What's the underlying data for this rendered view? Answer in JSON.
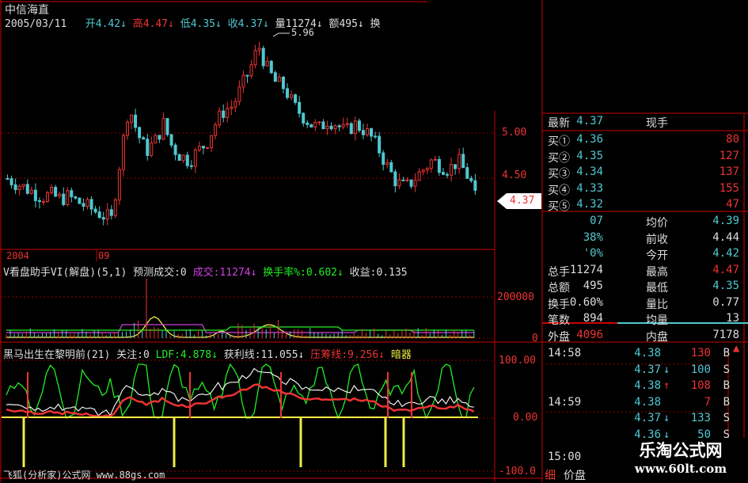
{
  "header": {
    "stock_name": "中信海直",
    "date": "2005/03/11",
    "open": "开4.42",
    "high": "高4.47",
    "low": "低4.35",
    "close": "收4.37",
    "volume": "量11274",
    "amount": "额495",
    "turnover": "换",
    "arrow": "↓"
  },
  "price_chart": {
    "peak_label": "5.96",
    "axis": [
      "5.00",
      "4.50"
    ],
    "current_price": "4.37",
    "years": [
      "2004",
      "09"
    ],
    "approx_closes": [
      4.5,
      4.45,
      4.4,
      4.35,
      4.3,
      4.32,
      4.28,
      4.3,
      4.25,
      4.2,
      4.15,
      4.1,
      4.05,
      4.7,
      5.3,
      5.0,
      4.8,
      4.9,
      5.1,
      4.85,
      4.75,
      4.7,
      4.8,
      4.9,
      5.1,
      5.25,
      5.3,
      5.5,
      5.7,
      5.96,
      5.7,
      5.55,
      5.5,
      5.3,
      5.2,
      5.1,
      5.05,
      5.15,
      5.1,
      5.0,
      5.1,
      5.05,
      4.95,
      4.8,
      4.6,
      4.45,
      4.4,
      4.5,
      4.6,
      4.7,
      4.65,
      4.6,
      4.7,
      4.55,
      4.37
    ]
  },
  "indicator1": {
    "title": "V看盘助手VI(解盘)(5,1)",
    "forecast": "预测成交:0",
    "deal": "成交:11274",
    "turnover_rate": "换手率%:0.602",
    "profit": "收益:0.135",
    "axis": [
      "200000",
      "0"
    ]
  },
  "indicator2": {
    "title": "黑马出生在黎明前(21)",
    "attention": "关注:0",
    "ldf": "LDF:4.878",
    "profit_line": "获利线:11.055",
    "pressure_line": "压筹线:9.256",
    "hidden": "暗器",
    "axis": [
      "100.00",
      "0.00",
      "-100.0"
    ]
  },
  "footer": {
    "watermark_left": "飞狐(分析家)公式网 www.88gs.com",
    "tabs": [
      "细",
      "价盘"
    ]
  },
  "quote": {
    "latest": {
      "label": "最新",
      "price": "4.37",
      "right_label": "现手"
    },
    "bids": [
      {
        "label": "买①",
        "price": "4.36",
        "vol": "80"
      },
      {
        "label": "买②",
        "price": "4.35",
        "vol": "127"
      },
      {
        "label": "买③",
        "price": "4.34",
        "vol": "137"
      },
      {
        "label": "买④",
        "price": "4.33",
        "vol": "155"
      },
      {
        "label": "买⑤",
        "price": "4.32",
        "vol": "47"
      }
    ],
    "stats": [
      {
        "l1": "",
        "v1": "07",
        "l2": "均价",
        "v2": "4.39"
      },
      {
        "l1": "",
        "v1": "38%",
        "l2": "前收",
        "v2": "4.44"
      },
      {
        "l1": "",
        "v1": "'0%",
        "l2": "今开",
        "v2": "4.42"
      },
      {
        "l1": "总手",
        "v1": "11274",
        "l2": "最高",
        "v2": "4.47"
      },
      {
        "l1": "总额",
        "v1": "495",
        "l2": "最低",
        "v2": "4.35"
      },
      {
        "l1": "换手",
        "v1": "0.60%",
        "l2": "量比",
        "v2": "0.77"
      },
      {
        "l1": "笔数",
        "v1": "894",
        "l2": "均量",
        "v2": "13"
      },
      {
        "l1": "外盘",
        "v1": "4096",
        "l2": "内盘",
        "v2": "7178"
      }
    ]
  },
  "ticks": [
    {
      "time": "14:58",
      "price": "4.38",
      "arrow": "",
      "vol": "130",
      "side": "B"
    },
    {
      "time": "",
      "price": "4.37",
      "arrow": "↓",
      "vol": "100",
      "side": "S"
    },
    {
      "time": "",
      "price": "4.38",
      "arrow": "↑",
      "vol": "108",
      "side": "B"
    },
    {
      "time": "14:59",
      "price": "4.38",
      "arrow": "",
      "vol": "7",
      "side": "B"
    },
    {
      "time": "",
      "price": "4.37",
      "arrow": "↓",
      "vol": "133",
      "side": "S"
    },
    {
      "time": "",
      "price": "4.36",
      "arrow": "↓",
      "vol": "50",
      "side": "S"
    },
    {
      "time": "15:00",
      "price": "",
      "arrow": "",
      "vol": "",
      "side": ""
    }
  ],
  "watermark": {
    "title": "乐淘公式网",
    "url": "www.60lt.com"
  },
  "colors": {
    "up": "#e33",
    "down": "#4fc8d0",
    "grid": "#c00"
  }
}
